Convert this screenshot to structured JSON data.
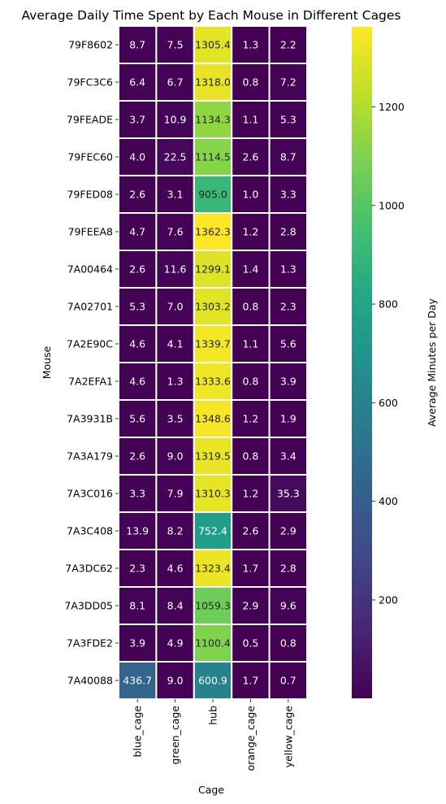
{
  "chart_data": {
    "type": "heatmap",
    "title": "Average Daily Time Spent by Each Mouse in Different Cages",
    "xlabel": "Cage",
    "ylabel": "Mouse",
    "colorbar_label": "Average Minutes per Day",
    "colormap": "viridis",
    "color_range": [
      0.5,
      1362.3
    ],
    "colorbar_ticks": [
      200,
      400,
      600,
      800,
      1000,
      1200
    ],
    "columns": [
      "blue_cage",
      "green_cage",
      "hub",
      "orange_cage",
      "yellow_cage"
    ],
    "rows": [
      "79F8602",
      "79FC3C6",
      "79FEADE",
      "79FEC60",
      "79FED08",
      "79FEEA8",
      "7A00464",
      "7A02701",
      "7A2E90C",
      "7A2EFA1",
      "7A3931B",
      "7A3A179",
      "7A3C016",
      "7A3C408",
      "7A3DC62",
      "7A3DD05",
      "7A3FDE2",
      "7A40088"
    ],
    "values": [
      [
        8.7,
        7.5,
        1305.4,
        1.3,
        2.2
      ],
      [
        6.4,
        6.7,
        1318.0,
        0.8,
        7.2
      ],
      [
        3.7,
        10.9,
        1134.3,
        1.1,
        5.3
      ],
      [
        4.0,
        22.5,
        1114.5,
        2.6,
        8.7
      ],
      [
        2.6,
        3.1,
        905.0,
        1.0,
        3.3
      ],
      [
        4.7,
        7.6,
        1362.3,
        1.2,
        2.8
      ],
      [
        2.6,
        11.6,
        1299.1,
        1.4,
        1.3
      ],
      [
        5.3,
        7.0,
        1303.2,
        0.8,
        2.3
      ],
      [
        4.6,
        4.1,
        1339.7,
        1.1,
        5.6
      ],
      [
        4.6,
        1.3,
        1333.6,
        0.8,
        3.9
      ],
      [
        5.6,
        3.5,
        1348.6,
        1.2,
        1.9
      ],
      [
        2.6,
        9.0,
        1319.5,
        0.8,
        3.4
      ],
      [
        3.3,
        7.9,
        1310.3,
        1.2,
        35.3
      ],
      [
        13.9,
        8.2,
        752.4,
        2.6,
        2.9
      ],
      [
        2.3,
        4.6,
        1323.4,
        1.7,
        2.8
      ],
      [
        8.1,
        8.4,
        1059.3,
        2.9,
        9.6
      ],
      [
        3.9,
        4.9,
        1100.4,
        0.5,
        0.8
      ],
      [
        436.7,
        9.0,
        600.9,
        1.7,
        0.7
      ]
    ]
  }
}
